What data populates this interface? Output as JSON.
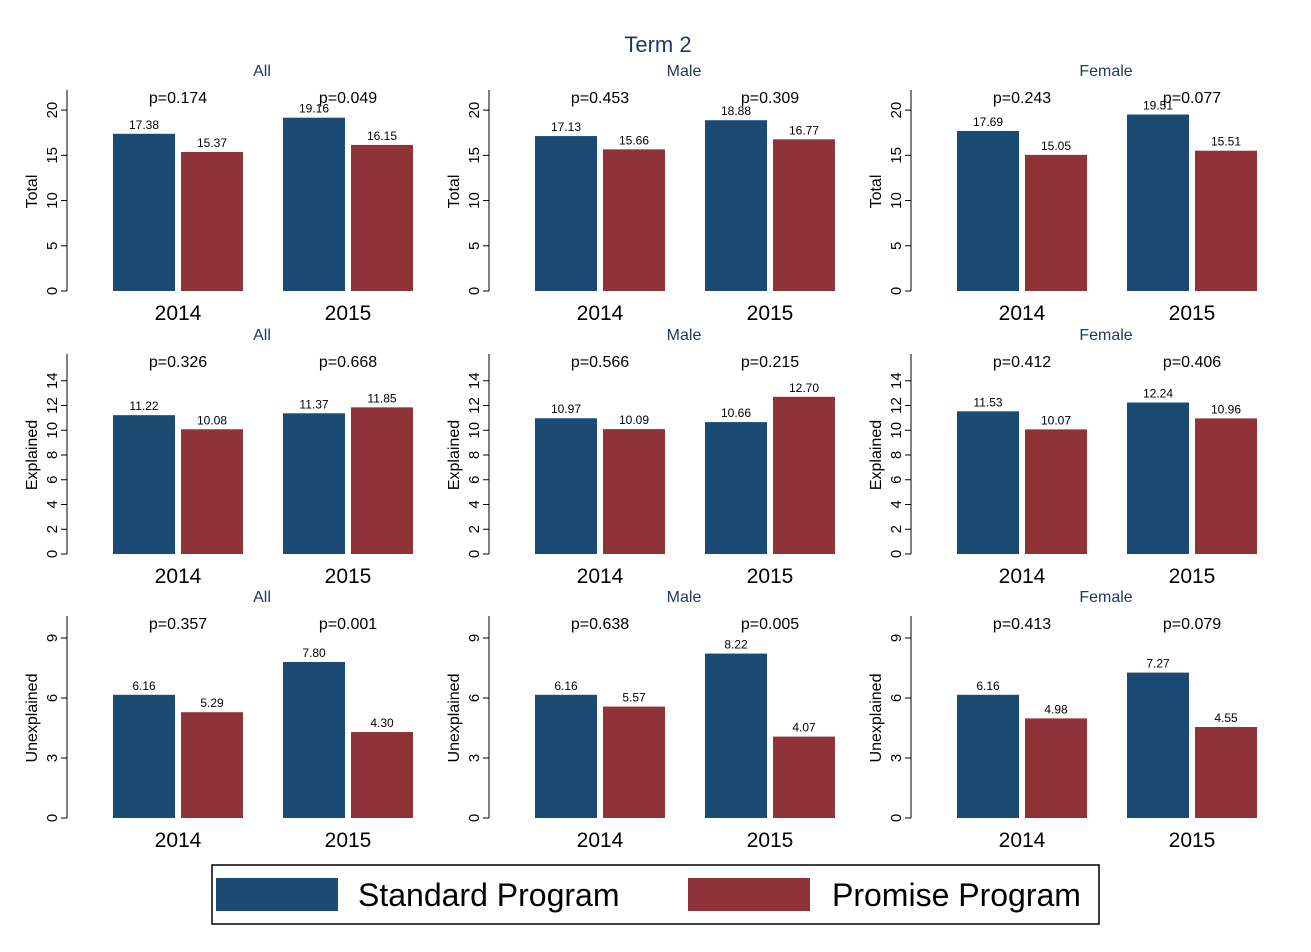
{
  "figure": {
    "title": "Term 2",
    "title_color": "#1f3864",
    "panel_title_color": "#1f3864"
  },
  "colors": {
    "standard": "#1b4a72",
    "promise": "#8f3339"
  },
  "legend": {
    "items": [
      {
        "label": "Standard Program",
        "color": "#1b4a72"
      },
      {
        "label": "Promise Program",
        "color": "#8f3339"
      }
    ]
  },
  "chart_data": [
    {
      "type": "bar",
      "title": "All",
      "ylabel": "Total",
      "ylim": [
        0,
        22
      ],
      "yticks": [
        0,
        5,
        10,
        15,
        20
      ],
      "categories": [
        "2014",
        "2015"
      ],
      "pvalues": [
        "p=0.174",
        "p=0.049"
      ],
      "series": [
        {
          "name": "Standard Program",
          "values": [
            17.38,
            19.16
          ],
          "labels": [
            "17.38",
            "19.16"
          ]
        },
        {
          "name": "Promise Program",
          "values": [
            15.37,
            16.15
          ],
          "labels": [
            "15.37",
            "16.15"
          ]
        }
      ]
    },
    {
      "type": "bar",
      "title": "Male",
      "ylabel": "Total",
      "ylim": [
        0,
        22
      ],
      "yticks": [
        0,
        5,
        10,
        15,
        20
      ],
      "categories": [
        "2014",
        "2015"
      ],
      "pvalues": [
        "p=0.453",
        "p=0.309"
      ],
      "series": [
        {
          "name": "Standard Program",
          "values": [
            17.13,
            18.88
          ],
          "labels": [
            "17.13",
            "18.88"
          ]
        },
        {
          "name": "Promise Program",
          "values": [
            15.66,
            16.77
          ],
          "labels": [
            "15.66",
            "16.77"
          ]
        }
      ]
    },
    {
      "type": "bar",
      "title": "Female",
      "ylabel": "Total",
      "ylim": [
        0,
        22
      ],
      "yticks": [
        0,
        5,
        10,
        15,
        20
      ],
      "categories": [
        "2014",
        "2015"
      ],
      "pvalues": [
        "p=0.243",
        "p=0.077"
      ],
      "series": [
        {
          "name": "Standard Program",
          "values": [
            17.69,
            19.51
          ],
          "labels": [
            "17.69",
            "19.51"
          ]
        },
        {
          "name": "Promise Program",
          "values": [
            15.05,
            15.51
          ],
          "labels": [
            "15.05",
            "15.51"
          ]
        }
      ]
    },
    {
      "type": "bar",
      "title": "All",
      "ylabel": "Explained",
      "ylim": [
        0,
        16
      ],
      "yticks": [
        0,
        2,
        4,
        6,
        8,
        10,
        12,
        14
      ],
      "categories": [
        "2014",
        "2015"
      ],
      "pvalues": [
        "p=0.326",
        "p=0.668"
      ],
      "series": [
        {
          "name": "Standard Program",
          "values": [
            11.22,
            11.37
          ],
          "labels": [
            "11.22",
            "11.37"
          ]
        },
        {
          "name": "Promise Program",
          "values": [
            10.08,
            11.85
          ],
          "labels": [
            "10.08",
            "11.85"
          ]
        }
      ]
    },
    {
      "type": "bar",
      "title": "Male",
      "ylabel": "Explained",
      "ylim": [
        0,
        16
      ],
      "yticks": [
        0,
        2,
        4,
        6,
        8,
        10,
        12,
        14
      ],
      "categories": [
        "2014",
        "2015"
      ],
      "pvalues": [
        "p=0.566",
        "p=0.215"
      ],
      "series": [
        {
          "name": "Standard Program",
          "values": [
            10.97,
            10.66
          ],
          "labels": [
            "10.97",
            "10.66"
          ]
        },
        {
          "name": "Promise Program",
          "values": [
            10.09,
            12.7
          ],
          "labels": [
            "10.09",
            "12.70"
          ]
        }
      ]
    },
    {
      "type": "bar",
      "title": "Female",
      "ylabel": "Explained",
      "ylim": [
        0,
        16
      ],
      "yticks": [
        0,
        2,
        4,
        6,
        8,
        10,
        12,
        14
      ],
      "categories": [
        "2014",
        "2015"
      ],
      "pvalues": [
        "p=0.412",
        "p=0.406"
      ],
      "series": [
        {
          "name": "Standard Program",
          "values": [
            11.53,
            12.24
          ],
          "labels": [
            "11.53",
            "12.24"
          ]
        },
        {
          "name": "Promise Program",
          "values": [
            10.07,
            10.96
          ],
          "labels": [
            "10.07",
            "10.96"
          ]
        }
      ]
    },
    {
      "type": "bar",
      "title": "All",
      "ylabel": "Unexplained",
      "ylim": [
        0,
        10
      ],
      "yticks": [
        0,
        3,
        6,
        9
      ],
      "categories": [
        "2014",
        "2015"
      ],
      "pvalues": [
        "p=0.357",
        "p=0.001"
      ],
      "series": [
        {
          "name": "Standard Program",
          "values": [
            6.16,
            7.8
          ],
          "labels": [
            "6.16",
            "7.80"
          ]
        },
        {
          "name": "Promise Program",
          "values": [
            5.29,
            4.3
          ],
          "labels": [
            "5.29",
            "4.30"
          ]
        }
      ]
    },
    {
      "type": "bar",
      "title": "Male",
      "ylabel": "Unexplained",
      "ylim": [
        0,
        10
      ],
      "yticks": [
        0,
        3,
        6,
        9
      ],
      "categories": [
        "2014",
        "2015"
      ],
      "pvalues": [
        "p=0.638",
        "p=0.005"
      ],
      "series": [
        {
          "name": "Standard Program",
          "values": [
            6.16,
            8.22
          ],
          "labels": [
            "6.16",
            "8.22"
          ]
        },
        {
          "name": "Promise Program",
          "values": [
            5.57,
            4.07
          ],
          "labels": [
            "5.57",
            "4.07"
          ]
        }
      ]
    },
    {
      "type": "bar",
      "title": "Female",
      "ylabel": "Unexplained",
      "ylim": [
        0,
        10
      ],
      "yticks": [
        0,
        3,
        6,
        9
      ],
      "categories": [
        "2014",
        "2015"
      ],
      "pvalues": [
        "p=0.413",
        "p=0.079"
      ],
      "series": [
        {
          "name": "Standard Program",
          "values": [
            6.16,
            7.27
          ],
          "labels": [
            "6.16",
            "7.27"
          ]
        },
        {
          "name": "Promise Program",
          "values": [
            4.98,
            4.55
          ],
          "labels": [
            "4.98",
            "4.55"
          ]
        }
      ]
    }
  ]
}
